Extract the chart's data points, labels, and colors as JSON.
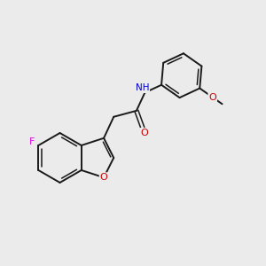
{
  "background_color": "#ebebeb",
  "bond_color": "#1a1a1a",
  "atom_colors": {
    "F": "#dd00dd",
    "O": "#cc0000",
    "N": "#0000cc",
    "H": "#4488aa",
    "C": "#1a1a1a"
  },
  "figsize": [
    3.0,
    3.0
  ],
  "dpi": 100
}
